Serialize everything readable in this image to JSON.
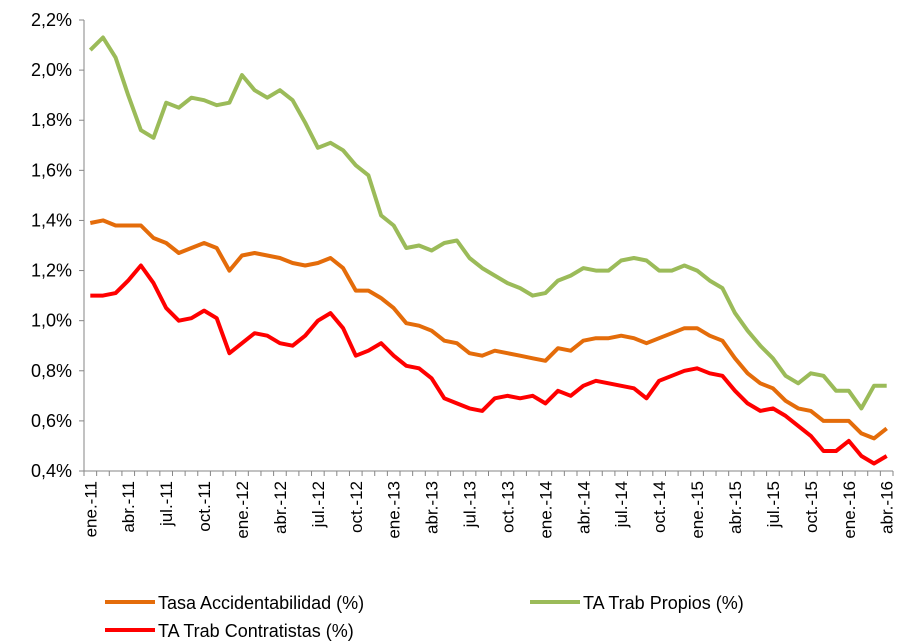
{
  "chart_data": {
    "type": "line",
    "categories": [
      "ene.-11",
      null,
      null,
      "abr.-11",
      null,
      null,
      "jul.-11",
      null,
      null,
      "oct.-11",
      null,
      null,
      "ene.-12",
      null,
      null,
      "abr.-12",
      null,
      null,
      "jul.-12",
      null,
      null,
      "oct.-12",
      null,
      null,
      "ene.-13",
      null,
      null,
      "abr.-13",
      null,
      null,
      "jul.-13",
      null,
      null,
      "oct.-13",
      null,
      null,
      "ene.-14",
      null,
      null,
      "abr.-14",
      null,
      null,
      "jul.-14",
      null,
      null,
      "oct.-14",
      null,
      null,
      "ene.-15",
      null,
      null,
      "abr.-15",
      null,
      null,
      "jul.-15",
      null,
      null,
      "oct.-15",
      null,
      null,
      "ene.-16",
      null,
      null,
      "abr.-16"
    ],
    "series": [
      {
        "name": "Tasa Accidentabilidad (%)",
        "color": "#e46c0a",
        "values": [
          1.39,
          1.4,
          1.38,
          1.38,
          1.38,
          1.33,
          1.31,
          1.27,
          1.29,
          1.31,
          1.29,
          1.2,
          1.26,
          1.27,
          1.26,
          1.25,
          1.23,
          1.22,
          1.23,
          1.25,
          1.21,
          1.12,
          1.12,
          1.09,
          1.05,
          0.99,
          0.98,
          0.96,
          0.92,
          0.91,
          0.87,
          0.86,
          0.88,
          0.87,
          0.86,
          0.85,
          0.84,
          0.89,
          0.88,
          0.92,
          0.93,
          0.93,
          0.94,
          0.93,
          0.91,
          0.93,
          0.95,
          0.97,
          0.97,
          0.94,
          0.92,
          0.85,
          0.79,
          0.75,
          0.73,
          0.68,
          0.65,
          0.64,
          0.6,
          0.6,
          0.6,
          0.55,
          0.53,
          0.57
        ]
      },
      {
        "name": "TA Trab Propios (%)",
        "color": "#9bbb59",
        "values": [
          2.08,
          2.13,
          2.05,
          1.9,
          1.76,
          1.73,
          1.87,
          1.85,
          1.89,
          1.88,
          1.86,
          1.87,
          1.98,
          1.92,
          1.89,
          1.92,
          1.88,
          1.79,
          1.69,
          1.71,
          1.68,
          1.62,
          1.58,
          1.42,
          1.38,
          1.29,
          1.3,
          1.28,
          1.31,
          1.32,
          1.25,
          1.21,
          1.18,
          1.15,
          1.13,
          1.1,
          1.11,
          1.16,
          1.18,
          1.21,
          1.2,
          1.2,
          1.24,
          1.25,
          1.24,
          1.2,
          1.2,
          1.22,
          1.2,
          1.16,
          1.13,
          1.03,
          0.96,
          0.9,
          0.85,
          0.78,
          0.75,
          0.79,
          0.78,
          0.72,
          0.72,
          0.65,
          0.74,
          0.74
        ]
      },
      {
        "name": "TA Trab Contratistas (%)",
        "color": "#ff0000",
        "values": [
          1.1,
          1.1,
          1.11,
          1.16,
          1.22,
          1.15,
          1.05,
          1.0,
          1.01,
          1.04,
          1.01,
          0.87,
          0.91,
          0.95,
          0.94,
          0.91,
          0.9,
          0.94,
          1.0,
          1.03,
          0.97,
          0.86,
          0.88,
          0.91,
          0.86,
          0.82,
          0.81,
          0.77,
          0.69,
          0.67,
          0.65,
          0.64,
          0.69,
          0.7,
          0.69,
          0.7,
          0.67,
          0.72,
          0.7,
          0.74,
          0.76,
          0.75,
          0.74,
          0.73,
          0.69,
          0.76,
          0.78,
          0.8,
          0.81,
          0.79,
          0.78,
          0.72,
          0.67,
          0.64,
          0.65,
          0.62,
          0.58,
          0.54,
          0.48,
          0.48,
          0.52,
          0.46,
          0.43,
          0.46
        ]
      }
    ],
    "ylim": [
      0.4,
      2.2
    ],
    "yticks": [
      {
        "value": 0.4,
        "label": "0,4%"
      },
      {
        "value": 0.6,
        "label": "0,6%"
      },
      {
        "value": 0.8,
        "label": "0,8%"
      },
      {
        "value": 1.0,
        "label": "1,0%"
      },
      {
        "value": 1.2,
        "label": "1,2%"
      },
      {
        "value": 1.4,
        "label": "1,4%"
      },
      {
        "value": 1.6,
        "label": "1,6%"
      },
      {
        "value": 1.8,
        "label": "1,8%"
      },
      {
        "value": 2.0,
        "label": "2,0%"
      },
      {
        "value": 2.2,
        "label": "2,2%"
      }
    ],
    "grid": false
  }
}
